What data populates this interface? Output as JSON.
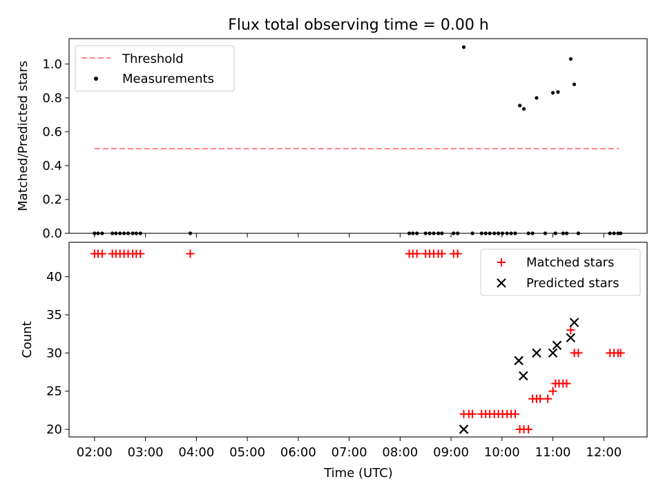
{
  "figure": {
    "title": "Flux total observing time = 0.00 h"
  },
  "chart_data": [
    {
      "type": "scatter",
      "ylabel": "Matched/Predicted stars",
      "xlim": [
        1.5,
        12.85
      ],
      "ylim": [
        0,
        1.15
      ],
      "xticks_shared_with_lower": true,
      "yticks": [
        0.0,
        0.2,
        0.4,
        0.6,
        0.8,
        1.0
      ],
      "ytick_labels": [
        "0.0",
        "0.2",
        "0.4",
        "0.6",
        "0.8",
        "1.0"
      ],
      "legend": {
        "position": "upper-left",
        "entries": [
          {
            "label": "Threshold",
            "marker": "dashed-line",
            "color": "#ff7f7f"
          },
          {
            "label": "Measurements",
            "marker": "dot",
            "color": "#000000"
          }
        ]
      },
      "threshold": {
        "y": 0.5,
        "x_range": [
          2.0,
          12.3
        ],
        "color": "#ff7f7f",
        "style": "dashed"
      },
      "series": [
        {
          "name": "Measurements",
          "color": "#000000",
          "x": [
            2.0,
            2.07,
            2.15,
            2.35,
            2.42,
            2.5,
            2.58,
            2.66,
            2.75,
            2.82,
            2.9,
            3.88,
            8.18,
            8.25,
            8.33,
            8.5,
            8.58,
            8.66,
            8.75,
            8.82,
            9.05,
            9.13,
            9.25,
            9.42,
            9.6,
            9.68,
            9.76,
            9.85,
            9.93,
            10.01,
            10.1,
            10.18,
            10.26,
            10.35,
            10.43,
            10.52,
            10.6,
            10.68,
            10.85,
            11.0,
            11.05,
            11.1,
            11.2,
            11.27,
            11.35,
            11.42,
            11.5,
            12.12,
            12.2,
            12.28,
            12.33
          ],
          "y": [
            0,
            0,
            0,
            0,
            0,
            0,
            0,
            0,
            0,
            0,
            0,
            0,
            0,
            0,
            0,
            0,
            0,
            0,
            0,
            0,
            0,
            0,
            1.1,
            0,
            0,
            0,
            0,
            0,
            0,
            0,
            0,
            0,
            0,
            0.755,
            0.735,
            0,
            0,
            0.8,
            0,
            0.83,
            0,
            0.835,
            0,
            0,
            1.03,
            0.88,
            0,
            0,
            0,
            0,
            0
          ]
        }
      ]
    },
    {
      "type": "scatter",
      "xlabel": "Time (UTC)",
      "ylabel": "Count",
      "xlim": [
        1.5,
        12.85
      ],
      "ylim": [
        19,
        44.5
      ],
      "xticks": [
        2,
        3,
        4,
        5,
        6,
        7,
        8,
        9,
        10,
        11,
        12
      ],
      "xtick_labels": [
        "02:00",
        "03:00",
        "04:00",
        "05:00",
        "06:00",
        "07:00",
        "08:00",
        "09:00",
        "10:00",
        "11:00",
        "12:00"
      ],
      "yticks": [
        20,
        25,
        30,
        35,
        40
      ],
      "ytick_labels": [
        "20",
        "25",
        "30",
        "35",
        "40"
      ],
      "legend": {
        "position": "upper-right",
        "entries": [
          {
            "label": "Matched stars",
            "marker": "plus",
            "color": "#ff0000"
          },
          {
            "label": "Predicted stars",
            "marker": "x",
            "color": "#000000"
          }
        ]
      },
      "series": [
        {
          "name": "Matched stars",
          "marker": "plus",
          "color": "#ff0000",
          "x": [
            2.0,
            2.07,
            2.15,
            2.35,
            2.42,
            2.5,
            2.58,
            2.66,
            2.75,
            2.82,
            2.9,
            3.88,
            8.18,
            8.25,
            8.33,
            8.5,
            8.58,
            8.66,
            8.75,
            8.82,
            9.05,
            9.13,
            9.25,
            9.35,
            9.42,
            9.6,
            9.68,
            9.76,
            9.85,
            9.93,
            10.01,
            10.1,
            10.18,
            10.26,
            10.35,
            10.43,
            10.52,
            10.6,
            10.68,
            10.75,
            10.9,
            11.0,
            11.05,
            11.12,
            11.2,
            11.27,
            11.35,
            11.42,
            11.5,
            12.12,
            12.2,
            12.28,
            12.33
          ],
          "y": [
            43,
            43,
            43,
            43,
            43,
            43,
            43,
            43,
            43,
            43,
            43,
            43,
            43,
            43,
            43,
            43,
            43,
            43,
            43,
            43,
            43,
            43,
            22,
            22,
            22,
            22,
            22,
            22,
            22,
            22,
            22,
            22,
            22,
            22,
            20,
            20,
            20,
            24,
            24,
            24,
            24,
            25,
            26,
            26,
            26,
            26,
            33,
            30,
            30,
            30,
            30,
            30,
            30
          ]
        },
        {
          "name": "Predicted stars",
          "marker": "x",
          "color": "#000000",
          "x": [
            9.25,
            10.33,
            10.42,
            10.68,
            11.0,
            11.08,
            11.35,
            11.42
          ],
          "y": [
            20,
            29,
            27,
            30,
            30,
            31,
            32,
            34
          ]
        }
      ]
    }
  ]
}
